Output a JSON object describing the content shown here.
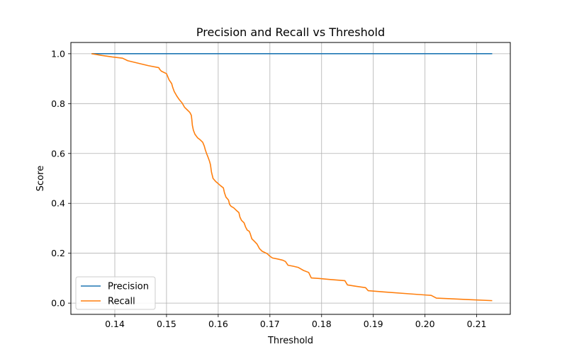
{
  "chart_data": {
    "type": "line",
    "title": "Precision and Recall vs Threshold",
    "xlabel": "Threshold",
    "ylabel": "Score",
    "xlim": [
      0.1315,
      0.2165
    ],
    "ylim": [
      -0.045,
      1.045
    ],
    "xticks": [
      0.14,
      0.15,
      0.16,
      0.17,
      0.18,
      0.19,
      0.2,
      0.21
    ],
    "xtick_labels": [
      "0.14",
      "0.15",
      "0.16",
      "0.17",
      "0.18",
      "0.19",
      "0.20",
      "0.21"
    ],
    "yticks": [
      0.0,
      0.2,
      0.4,
      0.6,
      0.8,
      1.0
    ],
    "ytick_labels": [
      "0.0",
      "0.2",
      "0.4",
      "0.6",
      "0.8",
      "1.0"
    ],
    "grid": true,
    "legend_position": "lower-left",
    "series": [
      {
        "name": "Precision",
        "color": "#1f77b4",
        "points": [
          [
            0.1355,
            1.0
          ],
          [
            0.213,
            1.0
          ]
        ]
      },
      {
        "name": "Recall",
        "color": "#ff7f0e",
        "points": [
          [
            0.1355,
            1.0
          ],
          [
            0.1375,
            0.993
          ],
          [
            0.1395,
            0.987
          ],
          [
            0.1415,
            0.982
          ],
          [
            0.1425,
            0.972
          ],
          [
            0.1445,
            0.962
          ],
          [
            0.1465,
            0.952
          ],
          [
            0.1485,
            0.944
          ],
          [
            0.1487,
            0.937
          ],
          [
            0.149,
            0.93
          ],
          [
            0.15,
            0.92
          ],
          [
            0.1502,
            0.91
          ],
          [
            0.1505,
            0.895
          ],
          [
            0.151,
            0.88
          ],
          [
            0.1512,
            0.865
          ],
          [
            0.1515,
            0.848
          ],
          [
            0.152,
            0.83
          ],
          [
            0.1525,
            0.815
          ],
          [
            0.153,
            0.803
          ],
          [
            0.1535,
            0.785
          ],
          [
            0.154,
            0.775
          ],
          [
            0.1545,
            0.765
          ],
          [
            0.1548,
            0.753
          ],
          [
            0.1549,
            0.735
          ],
          [
            0.155,
            0.713
          ],
          [
            0.1552,
            0.693
          ],
          [
            0.1555,
            0.677
          ],
          [
            0.156,
            0.663
          ],
          [
            0.1565,
            0.655
          ],
          [
            0.157,
            0.645
          ],
          [
            0.1573,
            0.63
          ],
          [
            0.1575,
            0.615
          ],
          [
            0.1578,
            0.597
          ],
          [
            0.158,
            0.587
          ],
          [
            0.1583,
            0.57
          ],
          [
            0.1585,
            0.555
          ],
          [
            0.1587,
            0.525
          ],
          [
            0.159,
            0.5
          ],
          [
            0.1595,
            0.488
          ],
          [
            0.1605,
            0.47
          ],
          [
            0.161,
            0.462
          ],
          [
            0.1612,
            0.443
          ],
          [
            0.1615,
            0.425
          ],
          [
            0.162,
            0.413
          ],
          [
            0.1622,
            0.396
          ],
          [
            0.1625,
            0.388
          ],
          [
            0.163,
            0.382
          ],
          [
            0.1635,
            0.372
          ],
          [
            0.164,
            0.363
          ],
          [
            0.1642,
            0.345
          ],
          [
            0.1645,
            0.332
          ],
          [
            0.165,
            0.322
          ],
          [
            0.1653,
            0.305
          ],
          [
            0.1656,
            0.293
          ],
          [
            0.166,
            0.288
          ],
          [
            0.1662,
            0.278
          ],
          [
            0.1665,
            0.258
          ],
          [
            0.167,
            0.248
          ],
          [
            0.1675,
            0.237
          ],
          [
            0.168,
            0.218
          ],
          [
            0.1685,
            0.208
          ],
          [
            0.1695,
            0.198
          ],
          [
            0.17,
            0.188
          ],
          [
            0.1705,
            0.181
          ],
          [
            0.1715,
            0.177
          ],
          [
            0.1725,
            0.172
          ],
          [
            0.173,
            0.167
          ],
          [
            0.1735,
            0.152
          ],
          [
            0.1745,
            0.148
          ],
          [
            0.1755,
            0.143
          ],
          [
            0.1765,
            0.131
          ],
          [
            0.1775,
            0.123
          ],
          [
            0.178,
            0.101
          ],
          [
            0.1795,
            0.099
          ],
          [
            0.1815,
            0.095
          ],
          [
            0.1845,
            0.09
          ],
          [
            0.185,
            0.073
          ],
          [
            0.1865,
            0.068
          ],
          [
            0.1885,
            0.062
          ],
          [
            0.189,
            0.05
          ],
          [
            0.192,
            0.045
          ],
          [
            0.1965,
            0.038
          ],
          [
            0.2005,
            0.032
          ],
          [
            0.2012,
            0.031
          ],
          [
            0.2022,
            0.02
          ],
          [
            0.2045,
            0.018
          ],
          [
            0.2085,
            0.014
          ],
          [
            0.213,
            0.01
          ]
        ]
      }
    ]
  }
}
